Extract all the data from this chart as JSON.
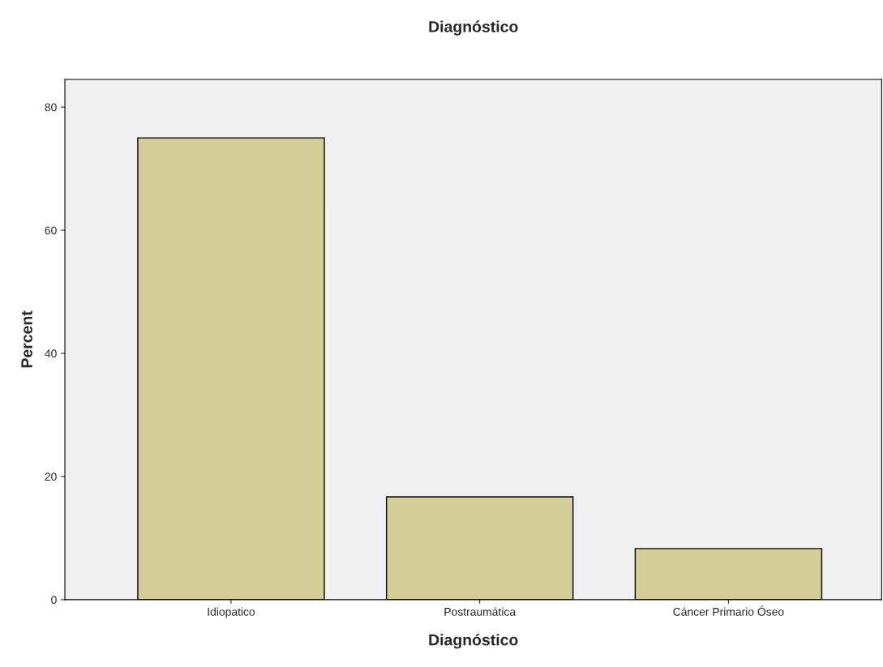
{
  "chart_data": {
    "type": "bar",
    "title": "Diagnóstico",
    "xlabel": "Diagnóstico",
    "ylabel": "Percent",
    "categories": [
      "Idiopatico",
      "Postraumática",
      "Cáncer Primario Óseo"
    ],
    "values": [
      75.0,
      16.7,
      8.3
    ],
    "color": "#d3ce97",
    "ylim": [
      0,
      84.5
    ],
    "yticks": [
      0,
      20,
      40,
      60,
      80
    ],
    "grid": false
  }
}
